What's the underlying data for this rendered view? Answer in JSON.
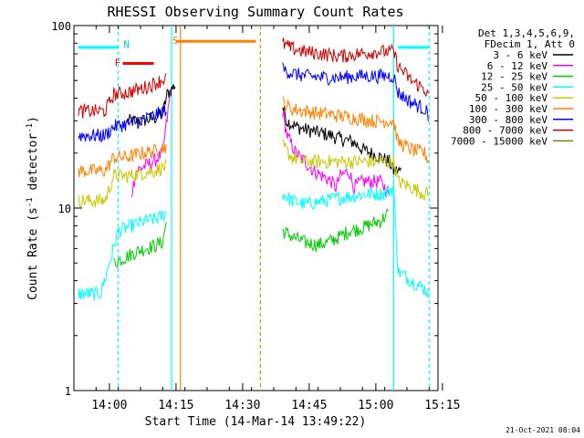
{
  "chart_data": {
    "type": "line",
    "title": "RHESSI Observing Summary Count Rates",
    "xlabel": "Start Time (14-Mar-14 13:49:22)",
    "ylabel_main": "Count Rate (s",
    "ylabel_sup1": "-1",
    "ylabel_mid": " detector",
    "ylabel_sup2": "-1",
    "ylabel_end": ")",
    "y_scale": "log",
    "ylim": [
      1,
      100
    ],
    "y_ticks": [
      {
        "value": 1,
        "label": "1"
      },
      {
        "value": 10,
        "label": "10"
      },
      {
        "value": 100,
        "label": "100"
      }
    ],
    "x_ticks": [
      "14:00",
      "14:15",
      "14:30",
      "14:45",
      "15:00",
      "15:15"
    ],
    "legend_header": [
      "Det 1,3,4,5,6,9,",
      "FDecim 1, Att 0"
    ],
    "timestamp": "21-Oct-2021 08:04",
    "flags": [
      {
        "label": "N",
        "color": "#00cccc"
      },
      {
        "label": "F",
        "color": "#ff0000"
      },
      {
        "label": "S",
        "color": "#ff8000"
      }
    ],
    "series": [
      {
        "name": "3 - 6 keV",
        "color": "#000000",
        "points": [
          [
            -3,
            null
          ],
          [
            0,
            null
          ],
          [
            8,
            30
          ],
          [
            11,
            30
          ],
          [
            14,
            31
          ],
          [
            16,
            33
          ],
          [
            17,
            42
          ],
          [
            19,
            48
          ],
          [
            43,
            36
          ],
          [
            44,
            30
          ],
          [
            46,
            28
          ],
          [
            48,
            27
          ],
          [
            51,
            26
          ],
          [
            54,
            25
          ],
          [
            56,
            24
          ],
          [
            59,
            23
          ],
          [
            61,
            21
          ],
          [
            63,
            20
          ],
          [
            65,
            19
          ],
          [
            67,
            18
          ],
          [
            68,
            16
          ],
          [
            70,
            16
          ],
          [
            71,
            null
          ]
        ]
      },
      {
        "name": "6 - 12 keV",
        "color": "#ff00ff",
        "points": [
          [
            9,
            12
          ],
          [
            10,
            16
          ],
          [
            12,
            17
          ],
          [
            14,
            18
          ],
          [
            16,
            20
          ],
          [
            18,
            48
          ],
          [
            43,
            34
          ],
          [
            44,
            25
          ],
          [
            46,
            20
          ],
          [
            48,
            18
          ],
          [
            50,
            16
          ],
          [
            52,
            15
          ],
          [
            54,
            14
          ],
          [
            55,
            13
          ],
          [
            56,
            15
          ],
          [
            58,
            16
          ],
          [
            59,
            13
          ],
          [
            61,
            14
          ],
          [
            63,
            14
          ],
          [
            65,
            14
          ],
          [
            67,
            12
          ],
          [
            68,
            null
          ]
        ]
      },
      {
        "name": "12 - 25 keV",
        "color": "#00cc00",
        "points": [
          [
            5,
            5.0
          ],
          [
            7,
            5.3
          ],
          [
            9,
            5.6
          ],
          [
            11,
            5.9
          ],
          [
            14,
            6.2
          ],
          [
            16,
            6.5
          ],
          [
            17,
            9
          ],
          [
            43,
            7.5
          ],
          [
            45,
            7.0
          ],
          [
            48,
            6.5
          ],
          [
            51,
            6.3
          ],
          [
            53,
            6.5
          ],
          [
            55,
            6.8
          ],
          [
            58,
            7.5
          ],
          [
            61,
            7.8
          ],
          [
            63,
            8.2
          ],
          [
            65,
            8.5
          ],
          [
            67,
            9.5
          ],
          [
            68,
            null
          ]
        ]
      },
      {
        "name": "25 - 50 keV",
        "color": "#00ffff",
        "points": [
          [
            -3,
            3.4
          ],
          [
            0,
            3.4
          ],
          [
            2,
            3.4
          ],
          [
            4,
            5.0
          ],
          [
            6,
            7.5
          ],
          [
            9,
            8.0
          ],
          [
            12,
            8.5
          ],
          [
            15,
            8.8
          ],
          [
            17,
            9.5
          ],
          [
            43,
            12
          ],
          [
            45,
            11
          ],
          [
            48,
            10.5
          ],
          [
            51,
            10.8
          ],
          [
            54,
            11.2
          ],
          [
            57,
            11.5
          ],
          [
            60,
            11.8
          ],
          [
            63,
            12
          ],
          [
            66,
            12
          ],
          [
            68,
            13
          ],
          [
            69,
            4.5
          ],
          [
            72,
            4.0
          ],
          [
            75,
            3.6
          ],
          [
            76,
            3.4
          ]
        ]
      },
      {
        "name": "50 - 100 keV",
        "color": "#c8c800",
        "points": [
          [
            -3,
            11
          ],
          [
            0,
            11
          ],
          [
            3,
            11
          ],
          [
            5,
            15
          ],
          [
            8,
            15
          ],
          [
            11,
            15.5
          ],
          [
            14,
            16
          ],
          [
            17,
            17
          ],
          [
            43,
            22
          ],
          [
            45,
            19
          ],
          [
            48,
            18
          ],
          [
            52,
            18
          ],
          [
            56,
            18
          ],
          [
            60,
            18
          ],
          [
            64,
            18
          ],
          [
            68,
            18
          ],
          [
            69,
            14
          ],
          [
            72,
            13
          ],
          [
            75,
            12
          ],
          [
            76,
            12
          ]
        ]
      },
      {
        "name": "100 - 300 keV",
        "color": "#ff8000",
        "points": [
          [
            -3,
            16
          ],
          [
            0,
            16
          ],
          [
            3,
            16
          ],
          [
            5,
            19
          ],
          [
            8,
            19
          ],
          [
            11,
            20
          ],
          [
            14,
            20.5
          ],
          [
            17,
            22
          ],
          [
            43,
            38
          ],
          [
            45,
            35
          ],
          [
            48,
            34
          ],
          [
            52,
            33
          ],
          [
            56,
            32
          ],
          [
            60,
            31
          ],
          [
            64,
            30
          ],
          [
            68,
            30
          ],
          [
            69,
            23
          ],
          [
            72,
            21
          ],
          [
            75,
            20
          ],
          [
            76,
            18
          ]
        ]
      },
      {
        "name": "300 - 800 keV",
        "color": "#0000ff",
        "points": [
          [
            -3,
            25
          ],
          [
            0,
            25
          ],
          [
            3,
            25
          ],
          [
            5,
            28
          ],
          [
            8,
            29
          ],
          [
            11,
            30
          ],
          [
            14,
            32
          ],
          [
            17,
            35
          ],
          [
            43,
            58
          ],
          [
            45,
            55
          ],
          [
            48,
            53
          ],
          [
            52,
            52
          ],
          [
            56,
            52
          ],
          [
            60,
            53
          ],
          [
            64,
            53
          ],
          [
            68,
            53
          ],
          [
            69,
            43
          ],
          [
            72,
            38
          ],
          [
            75,
            35
          ],
          [
            76,
            32
          ]
        ]
      },
      {
        "name": "800 - 7000 keV",
        "color": "#cc0000",
        "points": [
          [
            -3,
            34
          ],
          [
            0,
            34
          ],
          [
            3,
            34
          ],
          [
            5,
            42
          ],
          [
            8,
            43
          ],
          [
            11,
            45
          ],
          [
            14,
            48
          ],
          [
            17,
            52
          ],
          [
            43,
            80
          ],
          [
            45,
            75
          ],
          [
            48,
            72
          ],
          [
            52,
            70
          ],
          [
            56,
            68
          ],
          [
            60,
            70
          ],
          [
            64,
            72
          ],
          [
            68,
            72
          ],
          [
            69,
            60
          ],
          [
            72,
            50
          ],
          [
            75,
            45
          ],
          [
            76,
            40
          ]
        ]
      },
      {
        "name": "7000 - 15000 keV",
        "color": "#808000",
        "points": []
      }
    ],
    "flag_bars": [
      {
        "label": "N",
        "color": "#00ffff",
        "value": 76,
        "ranges": [
          [
            -3,
            6
          ],
          [
            69,
            76
          ]
        ]
      },
      {
        "label": "F",
        "color": "#ff0000",
        "value": 62,
        "ranges": [
          [
            7,
            14
          ]
        ]
      },
      {
        "label": "S",
        "color": "#ff8000",
        "value": 82,
        "ranges": [
          [
            19,
            37
          ]
        ]
      }
    ],
    "markers": [
      {
        "x": 6,
        "color": "#00ffff",
        "style": "dashed"
      },
      {
        "x": 18,
        "color": "#00ffff",
        "style": "solid"
      },
      {
        "x": 20,
        "color": "#ff8000",
        "style": "solid"
      },
      {
        "x": 38,
        "color": "#ff8000",
        "style": "dashed"
      },
      {
        "x": 68,
        "color": "#00ffff",
        "style": "solid"
      },
      {
        "x": 76,
        "color": "#00ffff",
        "style": "dashed"
      }
    ],
    "x_range_minutes": [
      -4,
      78
    ],
    "x_tick_minutes": [
      4,
      19,
      34,
      49,
      64,
      79
    ]
  }
}
